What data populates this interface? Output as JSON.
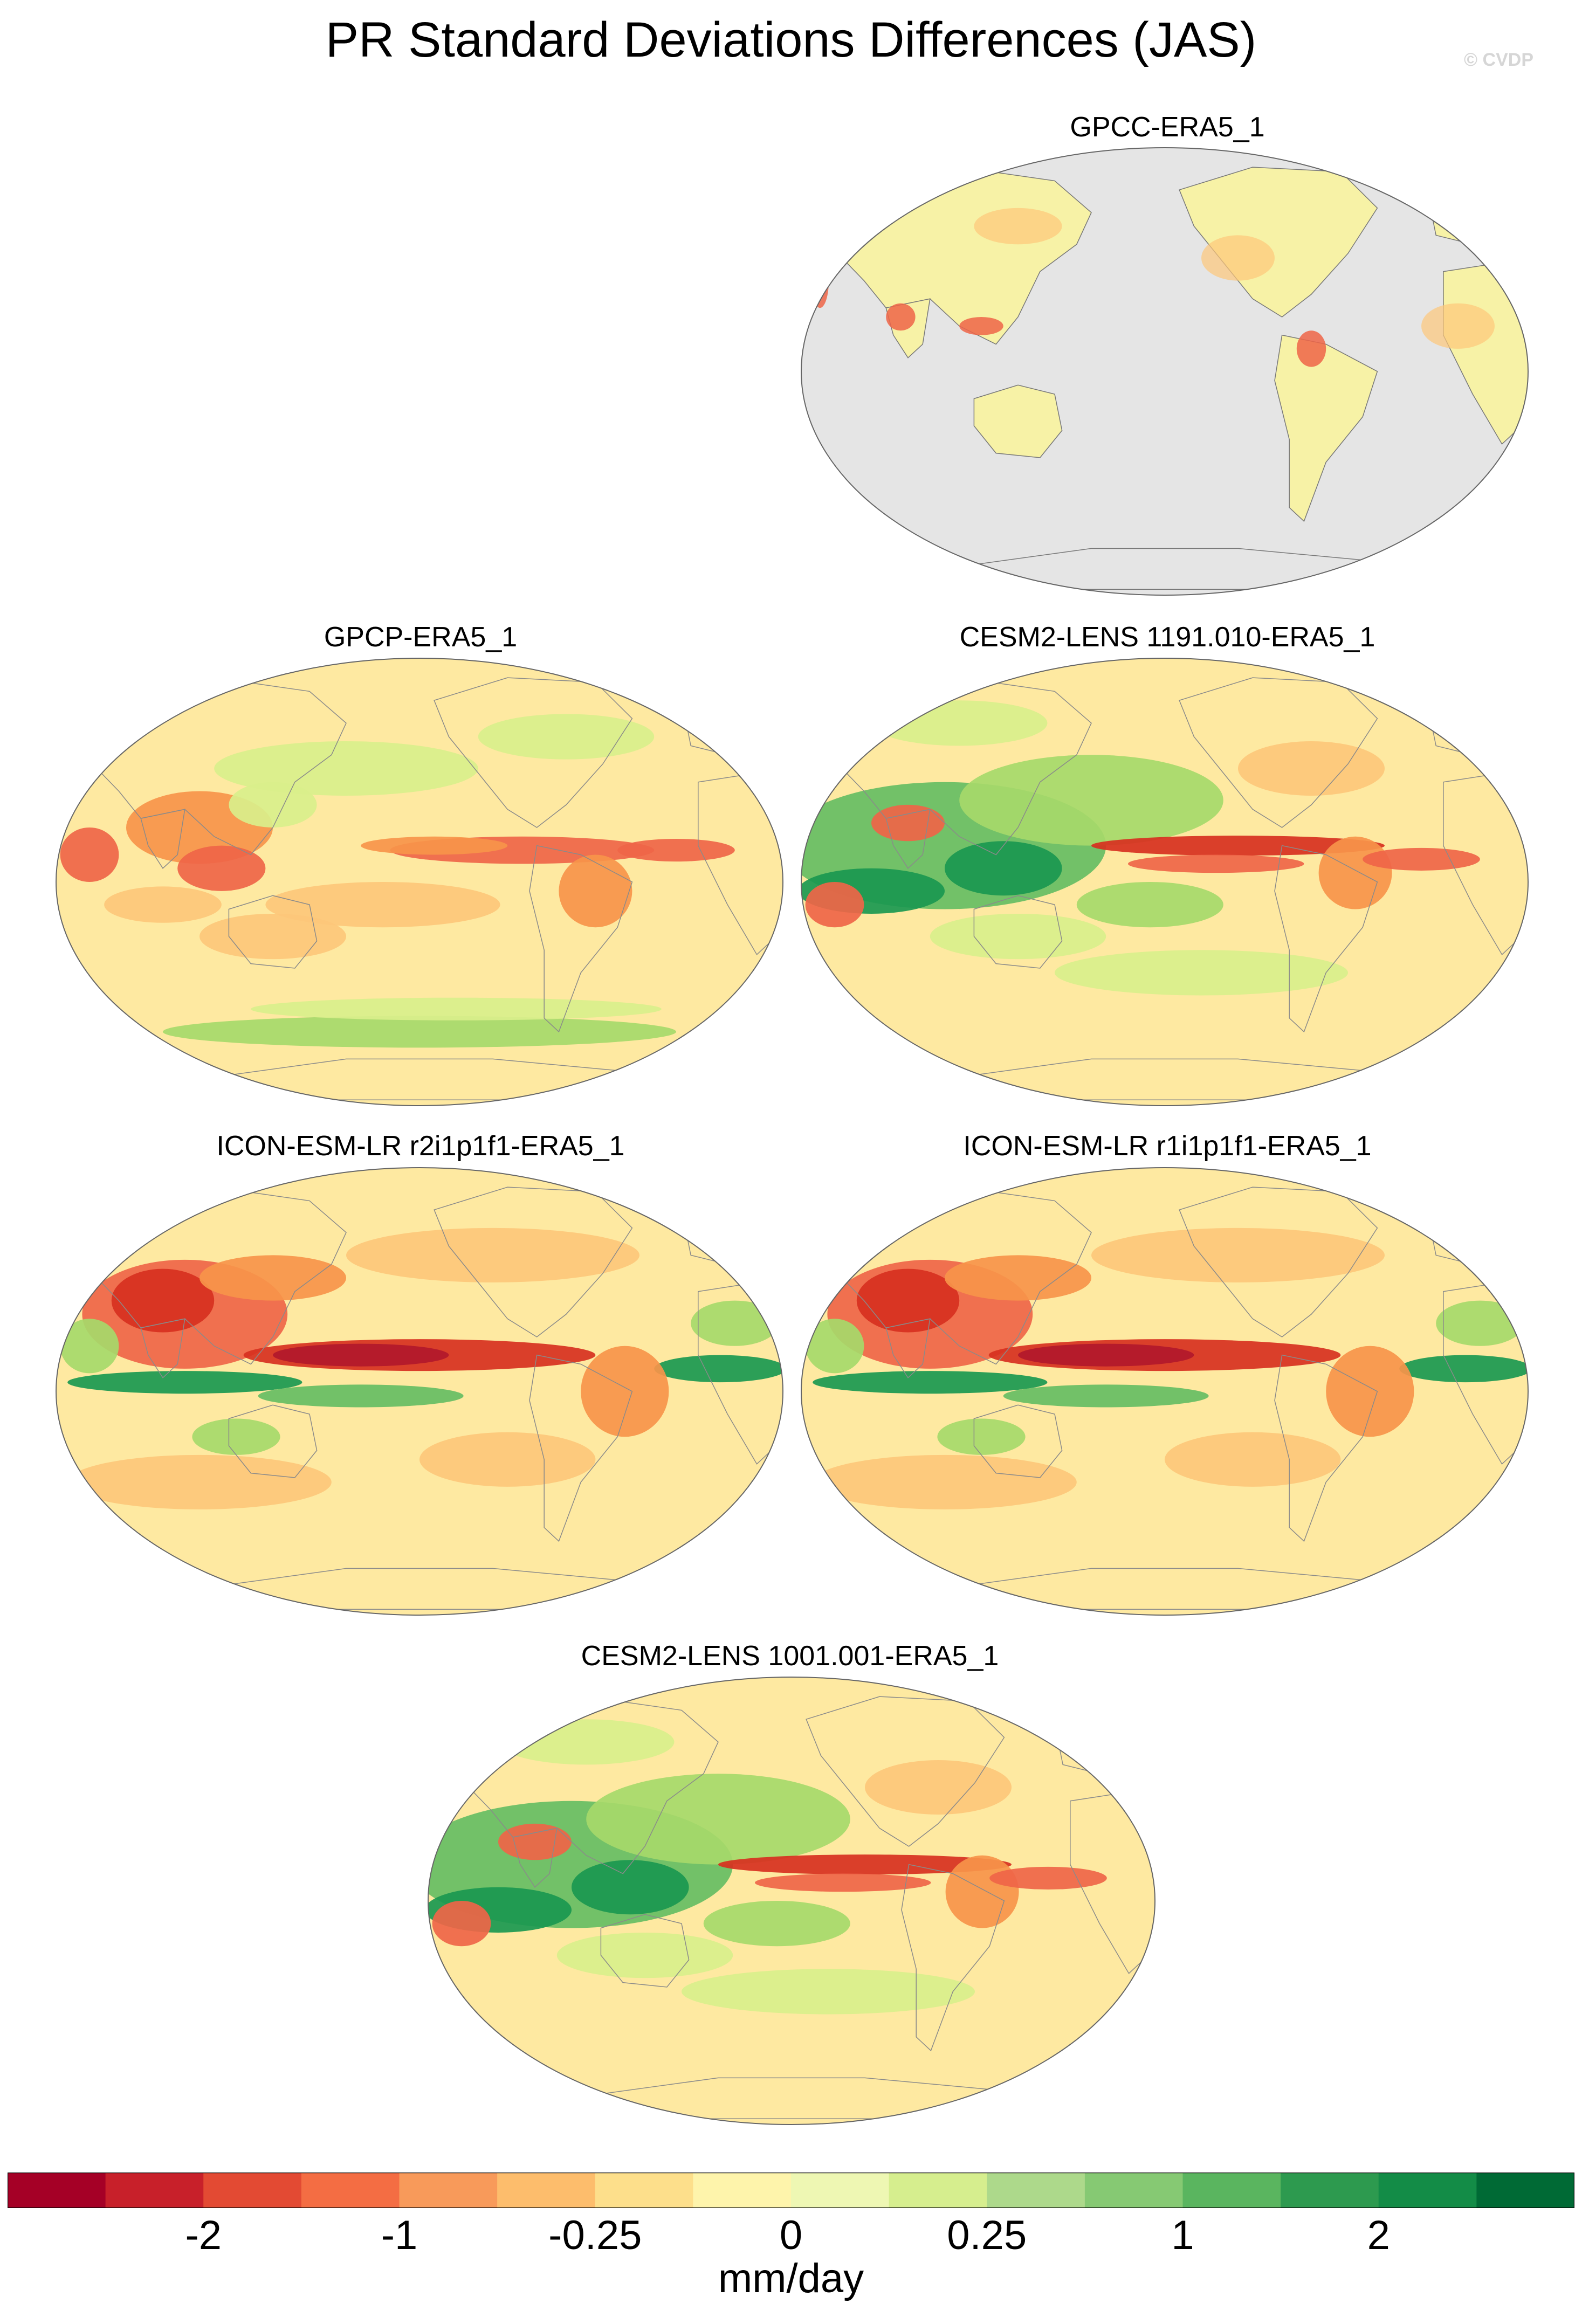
{
  "title": "PR Standard Deviations Differences (JAS)",
  "watermark": "© CVDP",
  "panels": [
    {
      "id": "gpcc",
      "label": "GPCC-ERA5_1",
      "style": "landonly"
    },
    {
      "id": "gpcp",
      "label": "GPCP-ERA5_1",
      "style": "gpcp"
    },
    {
      "id": "cesm1191",
      "label": "CESM2-LENS 1191.010-ERA5_1",
      "style": "cesm"
    },
    {
      "id": "icon2",
      "label": "ICON-ESM-LR r2i1p1f1-ERA5_1",
      "style": "icon"
    },
    {
      "id": "icon1",
      "label": "ICON-ESM-LR r1i1p1f1-ERA5_1",
      "style": "icon"
    },
    {
      "id": "cesm1001",
      "label": "CESM2-LENS 1001.001-ERA5_1",
      "style": "cesm"
    }
  ],
  "colorbar": {
    "colors": [
      "#a50026",
      "#c8202a",
      "#e34a33",
      "#f46d43",
      "#f89a5a",
      "#fdbd6c",
      "#fddf8b",
      "#fef4ab",
      "#eef7b3",
      "#d6ee8e",
      "#add98b",
      "#86c973",
      "#5ab55f",
      "#2d9a4f",
      "#138c47",
      "#006a35"
    ],
    "tick_labels": [
      "-2",
      "-1",
      "-0.25",
      "0",
      "0.25",
      "1",
      "2"
    ],
    "units": "mm/day"
  }
}
